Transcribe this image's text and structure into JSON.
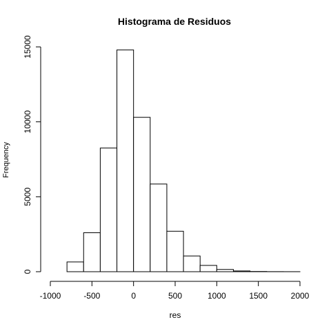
{
  "chart_data": {
    "type": "bar",
    "title": "Histograma de Residuos",
    "xlabel": "res",
    "ylabel": "Frequency",
    "xlim": [
      -1000,
      2000
    ],
    "ylim": [
      0,
      15500
    ],
    "xticks": [
      -1000,
      -500,
      0,
      500,
      1000,
      1500,
      2000
    ],
    "yticks": [
      0,
      5000,
      10000,
      15000
    ],
    "bins": [
      {
        "start": -800,
        "end": -600,
        "value": 650
      },
      {
        "start": -600,
        "end": -400,
        "value": 2600
      },
      {
        "start": -400,
        "end": -200,
        "value": 8250
      },
      {
        "start": -200,
        "end": 0,
        "value": 14800
      },
      {
        "start": 0,
        "end": 200,
        "value": 10300
      },
      {
        "start": 200,
        "end": 400,
        "value": 5850
      },
      {
        "start": 400,
        "end": 600,
        "value": 2700
      },
      {
        "start": 600,
        "end": 800,
        "value": 1050
      },
      {
        "start": 800,
        "end": 1000,
        "value": 420
      },
      {
        "start": 1000,
        "end": 1200,
        "value": 150
      },
      {
        "start": 1200,
        "end": 1400,
        "value": 50
      },
      {
        "start": 1400,
        "end": 1600,
        "value": 15
      },
      {
        "start": 1600,
        "end": 1800,
        "value": 5
      },
      {
        "start": 1800,
        "end": 2000,
        "value": 2
      }
    ],
    "grid": false,
    "legend": "none"
  }
}
